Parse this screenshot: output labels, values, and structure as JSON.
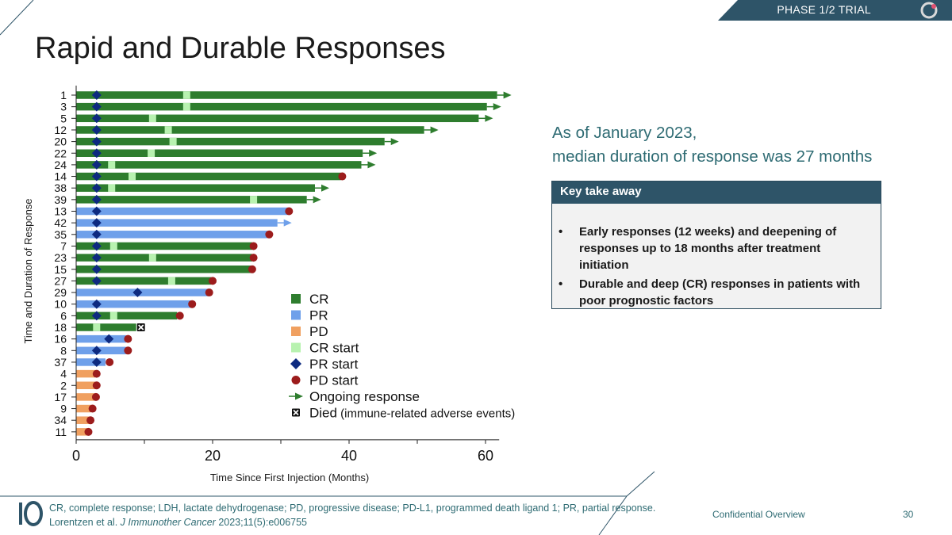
{
  "header": {
    "title": "Rapid and Durable Responses",
    "phase": "PHASE 1/2 TRIAL"
  },
  "callout": {
    "line1": "As of January 2023,",
    "line2": "median duration of response was 27 months"
  },
  "takeaway": {
    "title": "Key take away",
    "bullets": [
      "Early responses (12 weeks) and deepening of responses up to 18 months after treatment initiation",
      "Durable and deep (CR) responses in patients with poor prognostic factors"
    ]
  },
  "footer": {
    "abbreviations": "CR, complete response; LDH, lactate dehydrogenase; PD, progressive disease; PD-L1, programmed death ligand 1; PR, partial response.",
    "citation_authors": "Lorentzen et al.",
    "citation_journal": "J Immunother Cancer",
    "citation_rest": "2023;11(5):e006755",
    "confidential": "Confidential Overview",
    "page": "30"
  },
  "colors": {
    "CR": "#2e7d2e",
    "PR": "#6fa0ea",
    "PD": "#f0a060",
    "CRstart": "#b8f2b0",
    "PRstart": "#0d2a80",
    "PDstart": "#9c1c1c",
    "arrow": "#2e7d2e",
    "accent": "#2e5468"
  },
  "chart_data": {
    "type": "swimmer",
    "xlabel": "Time Since First Injection (Months)",
    "ylabel": "Time and Duration of Response",
    "xlim": [
      0,
      62
    ],
    "xticks": [
      0,
      20,
      40,
      60
    ],
    "legend_position": "lower-middle",
    "legend": [
      {
        "key": "CR",
        "label": "CR"
      },
      {
        "key": "PR",
        "label": "PR"
      },
      {
        "key": "PD",
        "label": "PD"
      },
      {
        "key": "CRstart",
        "label": "CR start"
      },
      {
        "key": "PRstart",
        "label": "PR start"
      },
      {
        "key": "PDstart",
        "label": "PD start"
      },
      {
        "key": "ongoing",
        "label": "Ongoing response"
      },
      {
        "key": "died",
        "label": "Died",
        "sublabel": "(immune-related adverse events)"
      }
    ],
    "patients": [
      {
        "id": "1",
        "type": "CR",
        "end": 61.7,
        "pr": 3.0,
        "cr": 16.2,
        "ongoing": true
      },
      {
        "id": "3",
        "type": "CR",
        "end": 60.2,
        "pr": 3.0,
        "cr": 16.2,
        "ongoing": true
      },
      {
        "id": "5",
        "type": "CR",
        "end": 59.0,
        "pr": 3.0,
        "cr": 11.2,
        "ongoing": true
      },
      {
        "id": "12",
        "type": "CR",
        "end": 51.0,
        "pr": 3.0,
        "cr": 13.5,
        "ongoing": true
      },
      {
        "id": "20",
        "type": "CR",
        "end": 45.2,
        "pr": 3.0,
        "cr": 14.2,
        "ongoing": true
      },
      {
        "id": "22",
        "type": "CR",
        "end": 42.0,
        "pr": 3.0,
        "cr": 11.0,
        "ongoing": true
      },
      {
        "id": "24",
        "type": "CR",
        "end": 41.8,
        "pr": 3.0,
        "cr": 5.2,
        "ongoing": true
      },
      {
        "id": "14",
        "type": "CR",
        "end": 38.8,
        "pr": 3.0,
        "cr": 8.2,
        "pd": 39.0
      },
      {
        "id": "38",
        "type": "CR",
        "end": 35.0,
        "pr": 3.0,
        "cr": 5.2,
        "ongoing": true
      },
      {
        "id": "39",
        "type": "CR",
        "end": 33.8,
        "pr": 3.0,
        "cr": 26.0,
        "ongoing": true
      },
      {
        "id": "13",
        "type": "PR",
        "end": 31.0,
        "pr": 3.0,
        "pd": 31.2
      },
      {
        "id": "42",
        "type": "PR",
        "end": 29.5,
        "pr": 3.0,
        "ongoing": true,
        "arrowColor": "PR"
      },
      {
        "id": "35",
        "type": "PR",
        "end": 28.0,
        "pr": 3.0,
        "pd": 28.3
      },
      {
        "id": "7",
        "type": "CR",
        "end": 25.8,
        "pr": 3.0,
        "cr": 5.5,
        "pd": 26.0
      },
      {
        "id": "23",
        "type": "CR",
        "end": 25.8,
        "pr": 3.0,
        "cr": 11.2,
        "pd": 26.0
      },
      {
        "id": "15",
        "type": "CR",
        "end": 25.6,
        "pr": 3.0,
        "pd": 25.8
      },
      {
        "id": "27",
        "type": "CR",
        "end": 19.8,
        "pr": 3.0,
        "cr": 14.0,
        "pd": 20.0
      },
      {
        "id": "29",
        "type": "PR",
        "end": 19.5,
        "pr": 9.0,
        "pd": 19.5
      },
      {
        "id": "10",
        "type": "PR",
        "end": 16.8,
        "pr": 3.0,
        "pd": 17.0
      },
      {
        "id": "6",
        "type": "CR",
        "end": 14.8,
        "pr": 3.0,
        "cr": 5.5,
        "pd": 15.2
      },
      {
        "id": "18",
        "type": "CR",
        "end": 8.8,
        "cr": 3.0,
        "died": 9.5
      },
      {
        "id": "16",
        "type": "PR",
        "end": 7.3,
        "pr": 4.8,
        "pd": 7.6
      },
      {
        "id": "8",
        "type": "PR",
        "end": 7.3,
        "pr": 3.0,
        "pd": 7.6
      },
      {
        "id": "37",
        "type": "PR",
        "end": 4.3,
        "pr": 3.0,
        "pd": 4.9
      },
      {
        "id": "4",
        "type": "PD",
        "end": 2.8,
        "pd": 3.0
      },
      {
        "id": "2",
        "type": "PD",
        "end": 2.8,
        "pd": 3.0
      },
      {
        "id": "17",
        "type": "PD",
        "end": 2.7,
        "pd": 2.9
      },
      {
        "id": "9",
        "type": "PD",
        "end": 2.2,
        "pd": 2.4
      },
      {
        "id": "34",
        "type": "PD",
        "end": 1.9,
        "pd": 2.1
      },
      {
        "id": "11",
        "type": "PD",
        "end": 1.6,
        "pd": 1.8
      }
    ]
  }
}
